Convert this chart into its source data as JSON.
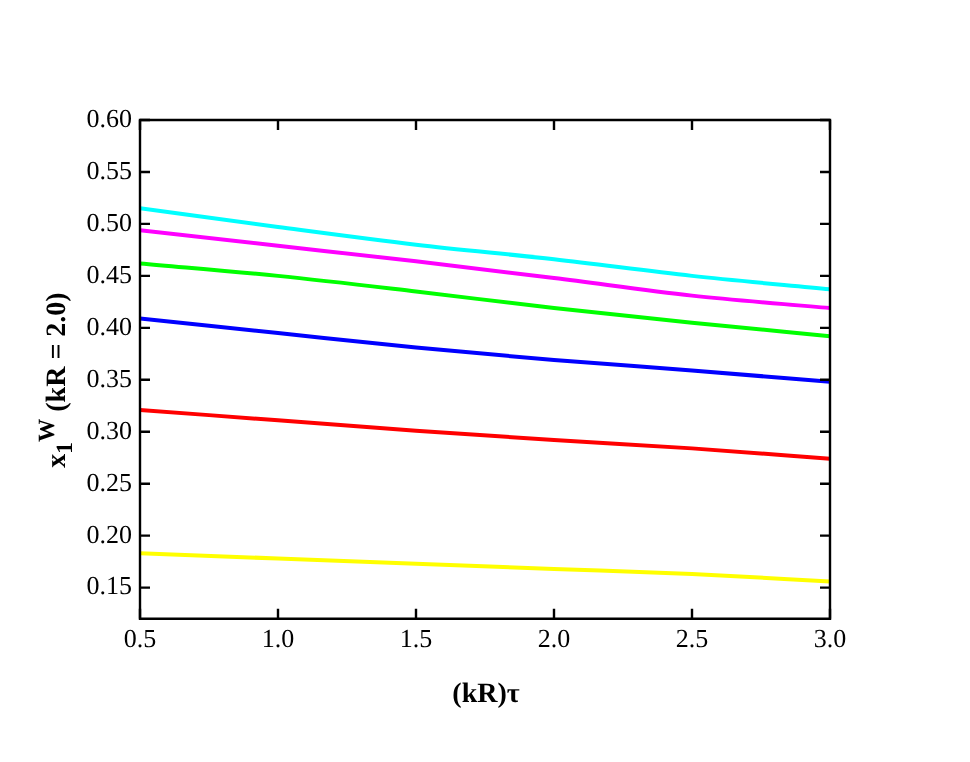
{
  "chart_data": {
    "type": "line",
    "xlabel": "(kR)τ",
    "ylabel": "x$_{1}$$^{W}$ (kR = 2.0)",
    "x": [
      0.5,
      1.0,
      1.5,
      2.0,
      2.5,
      3.0
    ],
    "series": [
      {
        "color": "#00ffff",
        "values": [
          0.515,
          0.497,
          0.48,
          0.466,
          0.45,
          0.437
        ]
      },
      {
        "color": "#ff00ff",
        "values": [
          0.494,
          0.479,
          0.464,
          0.448,
          0.431,
          0.419
        ]
      },
      {
        "color": "#00ff00",
        "values": [
          0.462,
          0.45,
          0.435,
          0.419,
          0.405,
          0.392
        ]
      },
      {
        "color": "#0000ff",
        "values": [
          0.409,
          0.395,
          0.381,
          0.369,
          0.359,
          0.348
        ]
      },
      {
        "color": "#ff0000",
        "values": [
          0.321,
          0.311,
          0.301,
          0.292,
          0.284,
          0.274
        ]
      },
      {
        "color": "#ffff00",
        "values": [
          0.183,
          0.178,
          0.173,
          0.168,
          0.163,
          0.156
        ]
      }
    ],
    "xlim": [
      0.5,
      3.0
    ],
    "ylim": [
      0.12,
      0.6
    ],
    "xticks": [
      0.5,
      {
        "value": 1.0,
        "label": "1.0"
      },
      1.5,
      {
        "value": 2.0,
        "label": "2.0"
      },
      2.5,
      {
        "value": 3.0,
        "label": "3.0"
      }
    ],
    "yticks": [
      0.15,
      {
        "value": 0.2,
        "label": "0.20"
      },
      0.25,
      {
        "value": 0.3,
        "label": "0.30"
      },
      0.35,
      {
        "value": 0.4,
        "label": "0.40"
      },
      0.45,
      {
        "value": 0.5,
        "label": "0.50"
      },
      0.55,
      {
        "value": 0.6,
        "label": "0.60"
      }
    ],
    "grid": false,
    "legend": false,
    "marker": "none",
    "line_style": "solid"
  }
}
